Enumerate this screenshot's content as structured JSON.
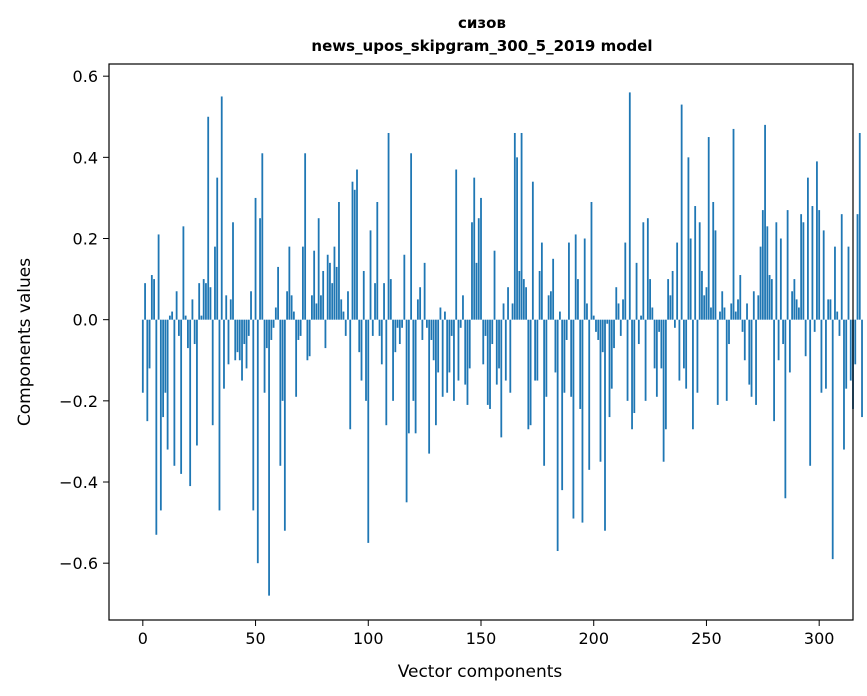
{
  "chart_data": {
    "type": "bar",
    "title_lines": [
      "сизов",
      "news_upos_skipgram_300_5_2019 model"
    ],
    "xlabel": "Vector components",
    "ylabel": "Components values",
    "xlim": [
      -15,
      315
    ],
    "ylim": [
      -0.74,
      0.63
    ],
    "xticks": [
      0,
      50,
      100,
      150,
      200,
      250,
      300
    ],
    "yticks": [
      -0.6,
      -0.4,
      -0.2,
      0.0,
      0.2,
      0.4,
      0.6
    ],
    "ytick_labels": [
      "−0.6",
      "−0.4",
      "−0.2",
      "0.0",
      "0.2",
      "0.4",
      "0.6"
    ],
    "bar_color": "#1f77b4",
    "grid": false,
    "legend": "none",
    "series": [
      {
        "values": [
          -0.18,
          0.09,
          -0.25,
          -0.12,
          0.11,
          0.1,
          -0.53,
          0.21,
          -0.47,
          -0.24,
          -0.18,
          -0.32,
          0.01,
          0.02,
          -0.36,
          0.07,
          -0.04,
          -0.38,
          0.23,
          0.01,
          -0.07,
          -0.41,
          0.05,
          -0.06,
          -0.31,
          0.09,
          0.01,
          0.1,
          0.09,
          0.5,
          0.08,
          -0.26,
          0.18,
          0.35,
          -0.47,
          0.55,
          -0.17,
          0.06,
          -0.11,
          0.05,
          0.24,
          -0.1,
          -0.08,
          -0.1,
          -0.15,
          -0.06,
          -0.12,
          -0.04,
          0.07,
          -0.47,
          0.3,
          -0.6,
          0.25,
          0.41,
          -0.18,
          -0.07,
          -0.68,
          -0.05,
          -0.02,
          0.03,
          0.13,
          -0.36,
          -0.2,
          -0.52,
          0.07,
          0.18,
          0.06,
          0.02,
          -0.19,
          -0.05,
          -0.04,
          0.18,
          0.41,
          -0.1,
          -0.09,
          0.06,
          0.17,
          0.04,
          0.25,
          0.06,
          0.12,
          -0.07,
          0.16,
          0.14,
          0.09,
          0.18,
          0.13,
          0.29,
          0.05,
          0.02,
          -0.04,
          0.07,
          -0.27,
          0.34,
          0.32,
          0.37,
          -0.08,
          -0.15,
          0.12,
          -0.2,
          -0.55,
          0.22,
          -0.04,
          0.09,
          0.29,
          -0.04,
          -0.11,
          0.09,
          -0.26,
          0.46,
          0.1,
          -0.2,
          -0.08,
          -0.02,
          -0.06,
          -0.02,
          0.16,
          -0.45,
          -0.28,
          0.41,
          -0.2,
          -0.28,
          0.05,
          0.08,
          -0.05,
          0.14,
          -0.02,
          -0.33,
          -0.05,
          -0.1,
          -0.26,
          -0.13,
          0.03,
          -0.19,
          0.02,
          -0.18,
          -0.13,
          -0.04,
          -0.2,
          0.37,
          -0.15,
          -0.02,
          0.06,
          -0.16,
          -0.21,
          -0.12,
          0.24,
          0.35,
          0.14,
          0.25,
          0.3,
          -0.11,
          -0.04,
          -0.21,
          -0.22,
          -0.06,
          0.17,
          -0.16,
          -0.12,
          -0.29,
          0.04,
          -0.15,
          0.08,
          -0.18,
          0.04,
          0.46,
          0.4,
          0.12,
          0.46,
          0.1,
          0.08,
          -0.27,
          -0.26,
          0.34,
          -0.15,
          -0.15,
          0.12,
          0.19,
          -0.36,
          -0.19,
          0.06,
          0.07,
          0.15,
          -0.13,
          -0.57,
          0.02,
          -0.42,
          -0.18,
          -0.05,
          0.19,
          -0.19,
          -0.49,
          0.21,
          0.1,
          -0.22,
          -0.5,
          0.2,
          0.04,
          -0.37,
          0.29,
          0.01,
          -0.03,
          -0.05,
          -0.35,
          -0.08,
          -0.52,
          -0.01,
          -0.24,
          -0.17,
          -0.07,
          0.08,
          0.04,
          -0.04,
          0.05,
          0.19,
          -0.2,
          0.56,
          -0.27,
          -0.23,
          0.14,
          -0.06,
          0.01,
          0.24,
          -0.2,
          0.25,
          0.1,
          0.03,
          -0.12,
          -0.19,
          -0.03,
          -0.12,
          -0.35,
          -0.27,
          0.1,
          0.06,
          0.12,
          -0.02,
          0.19,
          -0.15,
          0.53,
          -0.12,
          -0.17,
          0.4,
          0.2,
          -0.27,
          0.28,
          -0.18,
          0.24,
          0.12,
          0.06,
          0.08,
          0.45,
          0.03,
          0.29,
          0.22,
          -0.21,
          0.02,
          0.07,
          0.03,
          -0.2,
          -0.06,
          0.04,
          0.47,
          0.02,
          0.05,
          0.11,
          -0.03,
          -0.1,
          0.04,
          -0.16,
          -0.19,
          0.07,
          -0.21,
          0.06,
          0.18,
          0.27,
          0.48,
          0.23,
          0.11,
          0.1,
          -0.25,
          0.24,
          -0.1,
          0.2,
          -0.06,
          -0.44,
          0.27,
          -0.13,
          0.07,
          0.1,
          0.05,
          0.03,
          0.26,
          0.24,
          -0.09,
          0.35,
          -0.36,
          0.28,
          -0.03,
          0.39,
          0.27,
          -0.18,
          0.22,
          -0.17,
          0.05,
          0.05,
          -0.59,
          0.18,
          0.02,
          -0.04,
          0.26,
          -0.32,
          -0.17,
          0.18,
          -0.15,
          -0.22,
          -0.11,
          0.26,
          0.46,
          -0.24
        ]
      }
    ]
  }
}
